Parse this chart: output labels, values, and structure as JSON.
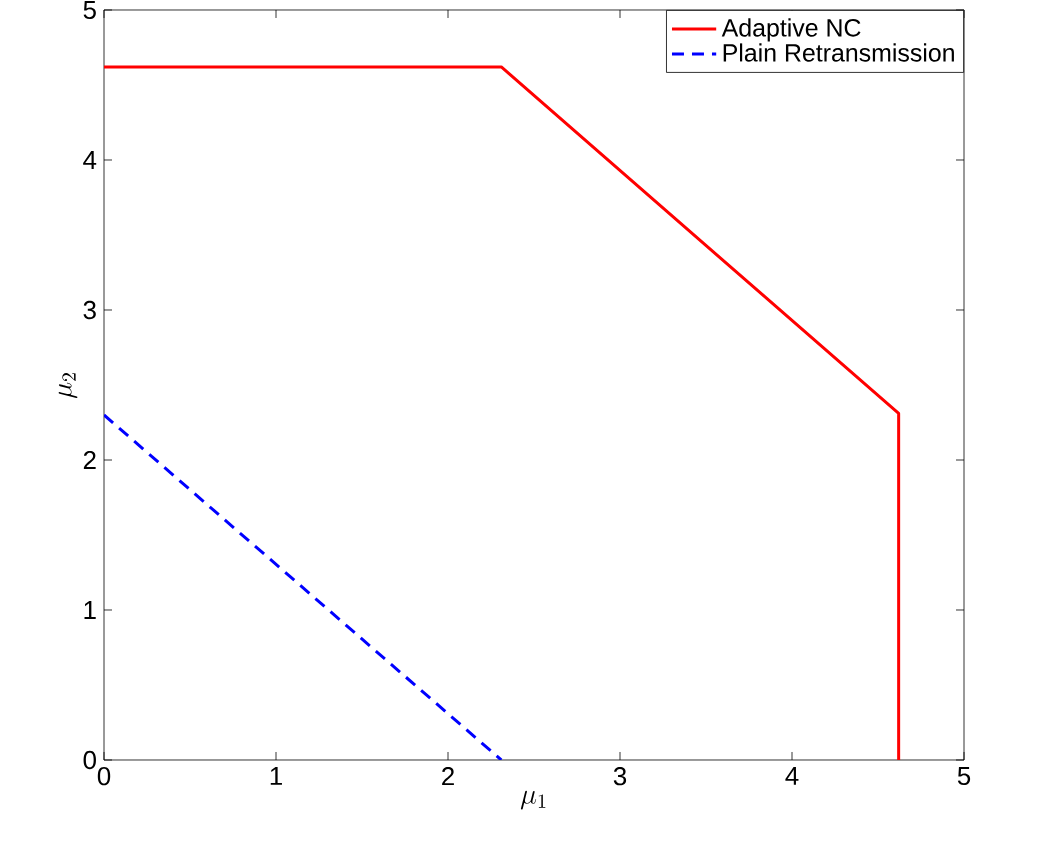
{
  "chart_data": {
    "type": "line",
    "xlabel": "\\mu_1",
    "ylabel": "\\mu_2",
    "xlim": [
      0,
      5
    ],
    "ylim": [
      0,
      5
    ],
    "xticks": [
      0,
      1,
      2,
      3,
      4,
      5
    ],
    "yticks": [
      0,
      1,
      2,
      3,
      4,
      5
    ],
    "grid": false,
    "legend": "top right",
    "marker": "none",
    "series": [
      {
        "name": "Adaptive NC",
        "color": "#ff0000",
        "line_style": "solid",
        "x": [
          0,
          2.31,
          4.62,
          4.62
        ],
        "values": [
          4.62,
          4.62,
          2.31,
          0
        ]
      },
      {
        "name": "Plain Retransmission",
        "color": "#0000ff",
        "line_style": "dashed",
        "x": [
          0,
          2.31
        ],
        "values": [
          2.3,
          0
        ]
      }
    ]
  }
}
